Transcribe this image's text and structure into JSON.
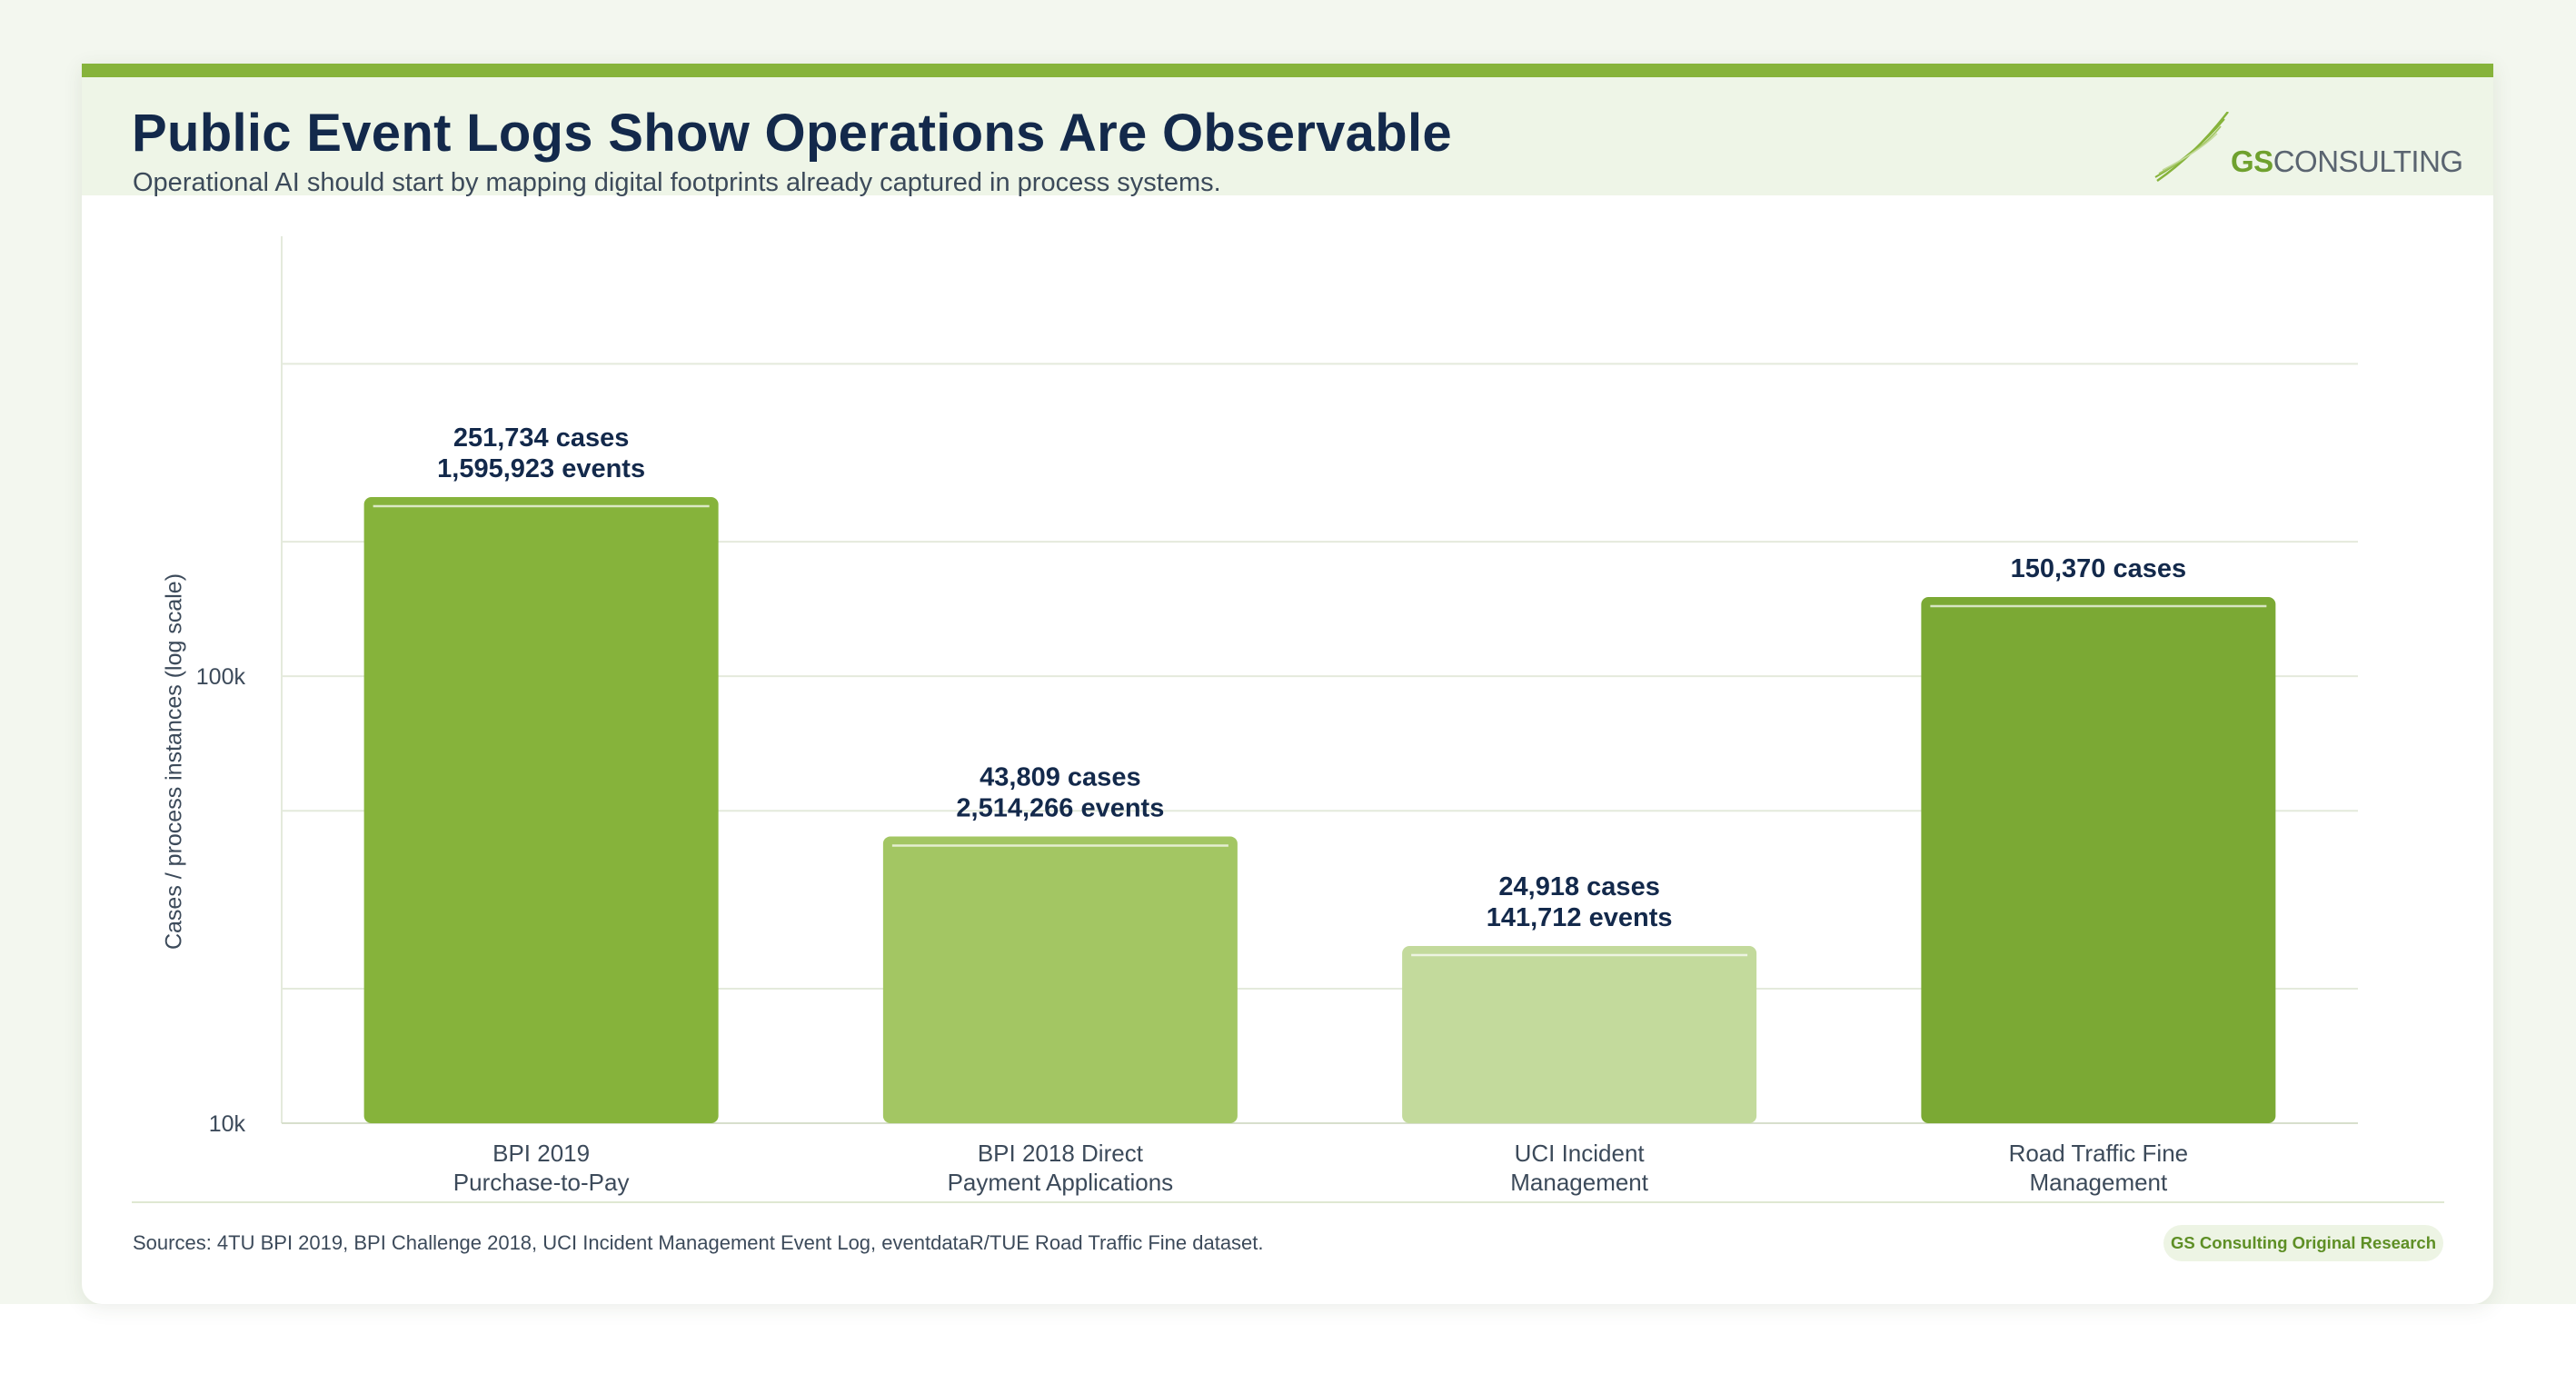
{
  "header": {
    "title": "Public Event Logs Show Operations Are Observable",
    "subtitle": "Operational AI should start by mapping digital footprints already captured in process systems.",
    "logo_brand": "GS",
    "logo_rest": "CONSULTING"
  },
  "colors": {
    "accent": "#86b33b",
    "title": "#13294b",
    "header_band": "#eef5e7"
  },
  "chart_data": {
    "type": "bar",
    "ylabel": "Cases / process instances (log scale)",
    "yscale": "log",
    "ylim": [
      10000,
      800000
    ],
    "yticks": [
      {
        "value": 10000,
        "label": "10k"
      },
      {
        "value": 100000,
        "label": "100k"
      }
    ],
    "grid": true,
    "categories": [
      [
        "BPI 2019",
        "Purchase-to-Pay"
      ],
      [
        "BPI 2018 Direct",
        "Payment Applications"
      ],
      [
        "UCI Incident",
        "Management"
      ],
      [
        "Road Traffic Fine",
        "Management"
      ]
    ],
    "values": [
      251734,
      43809,
      24918,
      150370
    ],
    "bar_colors": [
      "#86b33b",
      "#a3c663",
      "#c3da9c",
      "#7ba934"
    ],
    "data_labels": [
      [
        "251,734 cases",
        "1,595,923 events"
      ],
      [
        "43,809 cases",
        "2,514,266 events"
      ],
      [
        "24,918 cases",
        "141,712 events"
      ],
      [
        "150,370 cases"
      ]
    ]
  },
  "footer": {
    "sources": "Sources: 4TU BPI 2019, BPI Challenge 2018, UCI Incident Management Event Log, eventdataR/TUE Road Traffic Fine dataset.",
    "badge": "GS Consulting Original Research"
  }
}
